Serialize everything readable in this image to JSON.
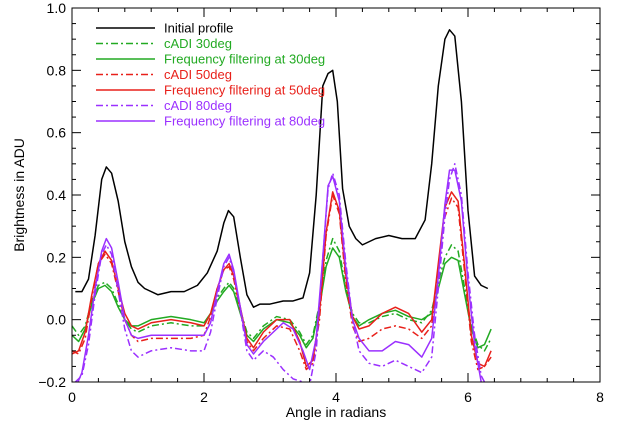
{
  "chart_data": {
    "type": "line",
    "xlabel": "Angle in radians",
    "ylabel": "Brightness in ADU",
    "xlim": [
      0,
      8
    ],
    "ylim": [
      -0.2,
      1.0
    ],
    "x_ticks": [
      "0",
      "2",
      "4",
      "6",
      "8"
    ],
    "y_ticks": [
      "−0.2",
      "0.0",
      "0.2",
      "0.4",
      "0.6",
      "0.8",
      "1.0"
    ],
    "grid": false,
    "legend_position": "top-left",
    "series": [
      {
        "name": "Initial profile",
        "color": "#000000",
        "dash": "solid",
        "x": [
          0.05,
          0.15,
          0.25,
          0.35,
          0.45,
          0.52,
          0.6,
          0.7,
          0.8,
          0.9,
          1.0,
          1.1,
          1.3,
          1.5,
          1.7,
          1.9,
          2.05,
          2.2,
          2.3,
          2.37,
          2.45,
          2.55,
          2.65,
          2.75,
          2.85,
          3.0,
          3.2,
          3.35,
          3.5,
          3.6,
          3.7,
          3.8,
          3.88,
          3.95,
          4.02,
          4.1,
          4.2,
          4.3,
          4.4,
          4.5,
          4.6,
          4.8,
          5.0,
          5.2,
          5.35,
          5.45,
          5.55,
          5.65,
          5.72,
          5.8,
          5.9,
          6.0,
          6.1,
          6.2,
          6.3
        ],
        "y": [
          0.09,
          0.09,
          0.13,
          0.27,
          0.45,
          0.49,
          0.47,
          0.38,
          0.25,
          0.17,
          0.12,
          0.1,
          0.08,
          0.09,
          0.09,
          0.11,
          0.15,
          0.22,
          0.31,
          0.35,
          0.33,
          0.2,
          0.08,
          0.04,
          0.05,
          0.05,
          0.06,
          0.06,
          0.07,
          0.15,
          0.4,
          0.75,
          0.79,
          0.8,
          0.7,
          0.42,
          0.3,
          0.26,
          0.24,
          0.25,
          0.26,
          0.27,
          0.26,
          0.26,
          0.32,
          0.5,
          0.75,
          0.9,
          0.93,
          0.91,
          0.7,
          0.35,
          0.14,
          0.11,
          0.1
        ]
      },
      {
        "name": "cADI 30deg",
        "color": "#22aa22",
        "dash": "dashdot",
        "x": [
          0.0,
          0.1,
          0.2,
          0.3,
          0.4,
          0.5,
          0.6,
          0.7,
          0.8,
          0.9,
          1.0,
          1.2,
          1.5,
          1.8,
          2.0,
          2.1,
          2.2,
          2.3,
          2.38,
          2.45,
          2.55,
          2.65,
          2.75,
          2.9,
          3.1,
          3.3,
          3.45,
          3.55,
          3.65,
          3.75,
          3.85,
          3.95,
          4.05,
          4.15,
          4.25,
          4.35,
          4.5,
          4.7,
          4.9,
          5.1,
          5.3,
          5.45,
          5.55,
          5.65,
          5.75,
          5.85,
          5.95,
          6.05,
          6.15,
          6.25,
          6.35
        ],
        "y": [
          -0.02,
          -0.05,
          -0.02,
          0.06,
          0.11,
          0.12,
          0.1,
          0.05,
          0.0,
          -0.03,
          -0.04,
          -0.02,
          -0.01,
          -0.02,
          -0.02,
          0.02,
          0.07,
          0.1,
          0.12,
          0.1,
          0.03,
          -0.04,
          -0.06,
          -0.02,
          0.01,
          0.0,
          -0.04,
          -0.08,
          -0.05,
          0.05,
          0.19,
          0.26,
          0.22,
          0.1,
          0.02,
          -0.01,
          -0.01,
          0.01,
          0.02,
          0.0,
          -0.01,
          0.03,
          0.12,
          0.2,
          0.24,
          0.22,
          0.1,
          -0.02,
          -0.08,
          -0.1,
          -0.06
        ]
      },
      {
        "name": "Frequency filtering at 30deg",
        "color": "#22aa22",
        "dash": "solid",
        "x": [
          0.0,
          0.1,
          0.2,
          0.3,
          0.4,
          0.5,
          0.6,
          0.7,
          0.8,
          0.9,
          1.0,
          1.2,
          1.5,
          1.8,
          2.0,
          2.1,
          2.2,
          2.3,
          2.38,
          2.45,
          2.55,
          2.65,
          2.75,
          2.9,
          3.1,
          3.3,
          3.45,
          3.55,
          3.65,
          3.75,
          3.85,
          3.95,
          4.05,
          4.15,
          4.25,
          4.35,
          4.5,
          4.7,
          4.9,
          5.1,
          5.3,
          5.45,
          5.55,
          5.65,
          5.75,
          5.85,
          5.95,
          6.05,
          6.15,
          6.25,
          6.35
        ],
        "y": [
          -0.05,
          -0.07,
          -0.03,
          0.05,
          0.1,
          0.11,
          0.09,
          0.04,
          0.0,
          -0.02,
          -0.02,
          0.0,
          0.01,
          0.0,
          -0.01,
          0.02,
          0.06,
          0.09,
          0.11,
          0.09,
          0.02,
          -0.05,
          -0.07,
          -0.03,
          0.0,
          -0.01,
          -0.05,
          -0.09,
          -0.06,
          0.04,
          0.17,
          0.23,
          0.2,
          0.09,
          0.01,
          -0.02,
          0.0,
          0.02,
          0.03,
          0.01,
          0.0,
          0.02,
          0.1,
          0.18,
          0.2,
          0.19,
          0.08,
          -0.03,
          -0.09,
          -0.08,
          -0.03
        ]
      },
      {
        "name": "cADI 50deg",
        "color": "#e8201a",
        "dash": "dashdot",
        "x": [
          0.0,
          0.1,
          0.2,
          0.3,
          0.4,
          0.5,
          0.6,
          0.7,
          0.8,
          0.9,
          1.0,
          1.2,
          1.5,
          1.8,
          2.0,
          2.1,
          2.2,
          2.3,
          2.38,
          2.45,
          2.55,
          2.65,
          2.75,
          2.9,
          3.1,
          3.3,
          3.45,
          3.55,
          3.65,
          3.75,
          3.85,
          3.95,
          4.05,
          4.15,
          4.25,
          4.35,
          4.5,
          4.7,
          4.9,
          5.1,
          5.3,
          5.45,
          5.55,
          5.65,
          5.75,
          5.85,
          5.95,
          6.05,
          6.15,
          6.25,
          6.35
        ],
        "y": [
          -0.1,
          -0.11,
          -0.06,
          0.07,
          0.18,
          0.21,
          0.18,
          0.09,
          0.0,
          -0.05,
          -0.07,
          -0.06,
          -0.06,
          -0.06,
          -0.05,
          0.01,
          0.1,
          0.16,
          0.17,
          0.13,
          0.03,
          -0.07,
          -0.1,
          -0.06,
          -0.02,
          -0.03,
          -0.1,
          -0.16,
          -0.14,
          0.0,
          0.27,
          0.4,
          0.34,
          0.12,
          -0.02,
          -0.07,
          -0.06,
          -0.03,
          -0.02,
          -0.03,
          -0.06,
          -0.02,
          0.15,
          0.33,
          0.39,
          0.36,
          0.15,
          -0.07,
          -0.16,
          -0.15,
          -0.12
        ]
      },
      {
        "name": "Frequency filtering at 50deg",
        "color": "#e8201a",
        "dash": "solid",
        "x": [
          0.0,
          0.1,
          0.2,
          0.3,
          0.4,
          0.5,
          0.6,
          0.7,
          0.8,
          0.9,
          1.0,
          1.2,
          1.5,
          1.8,
          2.0,
          2.1,
          2.2,
          2.3,
          2.38,
          2.45,
          2.55,
          2.65,
          2.75,
          2.9,
          3.1,
          3.3,
          3.45,
          3.55,
          3.65,
          3.75,
          3.85,
          3.95,
          4.05,
          4.15,
          4.25,
          4.35,
          4.5,
          4.7,
          4.9,
          5.1,
          5.3,
          5.45,
          5.55,
          5.65,
          5.75,
          5.85,
          5.95,
          6.05,
          6.15,
          6.25,
          6.35
        ],
        "y": [
          -0.11,
          -0.1,
          -0.04,
          0.08,
          0.18,
          0.22,
          0.19,
          0.1,
          0.02,
          -0.02,
          -0.03,
          -0.01,
          0.0,
          -0.01,
          -0.02,
          0.02,
          0.1,
          0.16,
          0.18,
          0.14,
          0.04,
          -0.06,
          -0.09,
          -0.04,
          0.0,
          0.0,
          -0.07,
          -0.15,
          -0.13,
          0.02,
          0.28,
          0.41,
          0.35,
          0.14,
          0.01,
          -0.03,
          -0.02,
          0.02,
          0.04,
          0.02,
          -0.04,
          0.0,
          0.18,
          0.36,
          0.41,
          0.38,
          0.17,
          -0.05,
          -0.14,
          -0.15,
          -0.1
        ]
      },
      {
        "name": "cADI 80deg",
        "color": "#9b30ff",
        "dash": "dashdot",
        "x": [
          0.05,
          0.15,
          0.25,
          0.35,
          0.45,
          0.52,
          0.6,
          0.7,
          0.8,
          0.9,
          1.0,
          1.2,
          1.5,
          1.8,
          2.0,
          2.1,
          2.2,
          2.3,
          2.38,
          2.45,
          2.55,
          2.65,
          2.75,
          2.9,
          3.05,
          3.2,
          3.35,
          3.5,
          3.6,
          3.7,
          3.8,
          3.88,
          3.95,
          4.05,
          4.15,
          4.25,
          4.35,
          4.5,
          4.7,
          4.9,
          5.1,
          5.3,
          5.45,
          5.55,
          5.65,
          5.72,
          5.8,
          5.9,
          6.0,
          6.1,
          6.2,
          6.3
        ],
        "y": [
          -0.2,
          -0.18,
          -0.08,
          0.08,
          0.21,
          0.24,
          0.21,
          0.09,
          -0.03,
          -0.1,
          -0.12,
          -0.1,
          -0.09,
          -0.1,
          -0.1,
          -0.04,
          0.07,
          0.17,
          0.2,
          0.15,
          0.03,
          -0.1,
          -0.13,
          -0.1,
          -0.12,
          -0.16,
          -0.19,
          -0.2,
          -0.21,
          -0.1,
          0.2,
          0.42,
          0.47,
          0.4,
          0.18,
          0.0,
          -0.1,
          -0.14,
          -0.15,
          -0.13,
          -0.15,
          -0.17,
          -0.12,
          0.1,
          0.33,
          0.45,
          0.5,
          0.4,
          0.15,
          -0.05,
          -0.18,
          -0.22
        ]
      },
      {
        "name": "Frequency filtering at 80deg",
        "color": "#9b30ff",
        "dash": "solid",
        "x": [
          0.05,
          0.15,
          0.25,
          0.35,
          0.45,
          0.52,
          0.6,
          0.7,
          0.8,
          0.9,
          1.0,
          1.2,
          1.5,
          1.8,
          2.0,
          2.1,
          2.2,
          2.3,
          2.38,
          2.45,
          2.55,
          2.65,
          2.75,
          2.9,
          3.05,
          3.2,
          3.35,
          3.5,
          3.6,
          3.7,
          3.8,
          3.88,
          3.95,
          4.05,
          4.15,
          4.25,
          4.35,
          4.5,
          4.7,
          4.9,
          5.1,
          5.3,
          5.45,
          5.55,
          5.65,
          5.72,
          5.8,
          5.9,
          6.0,
          6.1,
          6.2,
          6.3
        ],
        "y": [
          -0.22,
          -0.17,
          -0.05,
          0.1,
          0.22,
          0.26,
          0.23,
          0.12,
          0.0,
          -0.05,
          -0.06,
          -0.05,
          -0.05,
          -0.05,
          -0.05,
          -0.01,
          0.09,
          0.18,
          0.21,
          0.16,
          0.04,
          -0.08,
          -0.11,
          -0.07,
          -0.04,
          -0.01,
          -0.03,
          -0.1,
          -0.16,
          -0.06,
          0.2,
          0.43,
          0.46,
          0.38,
          0.16,
          0.0,
          -0.06,
          -0.1,
          -0.1,
          -0.07,
          -0.08,
          -0.12,
          -0.06,
          0.14,
          0.37,
          0.48,
          0.48,
          0.38,
          0.12,
          -0.08,
          -0.2,
          -0.24
        ]
      }
    ]
  }
}
